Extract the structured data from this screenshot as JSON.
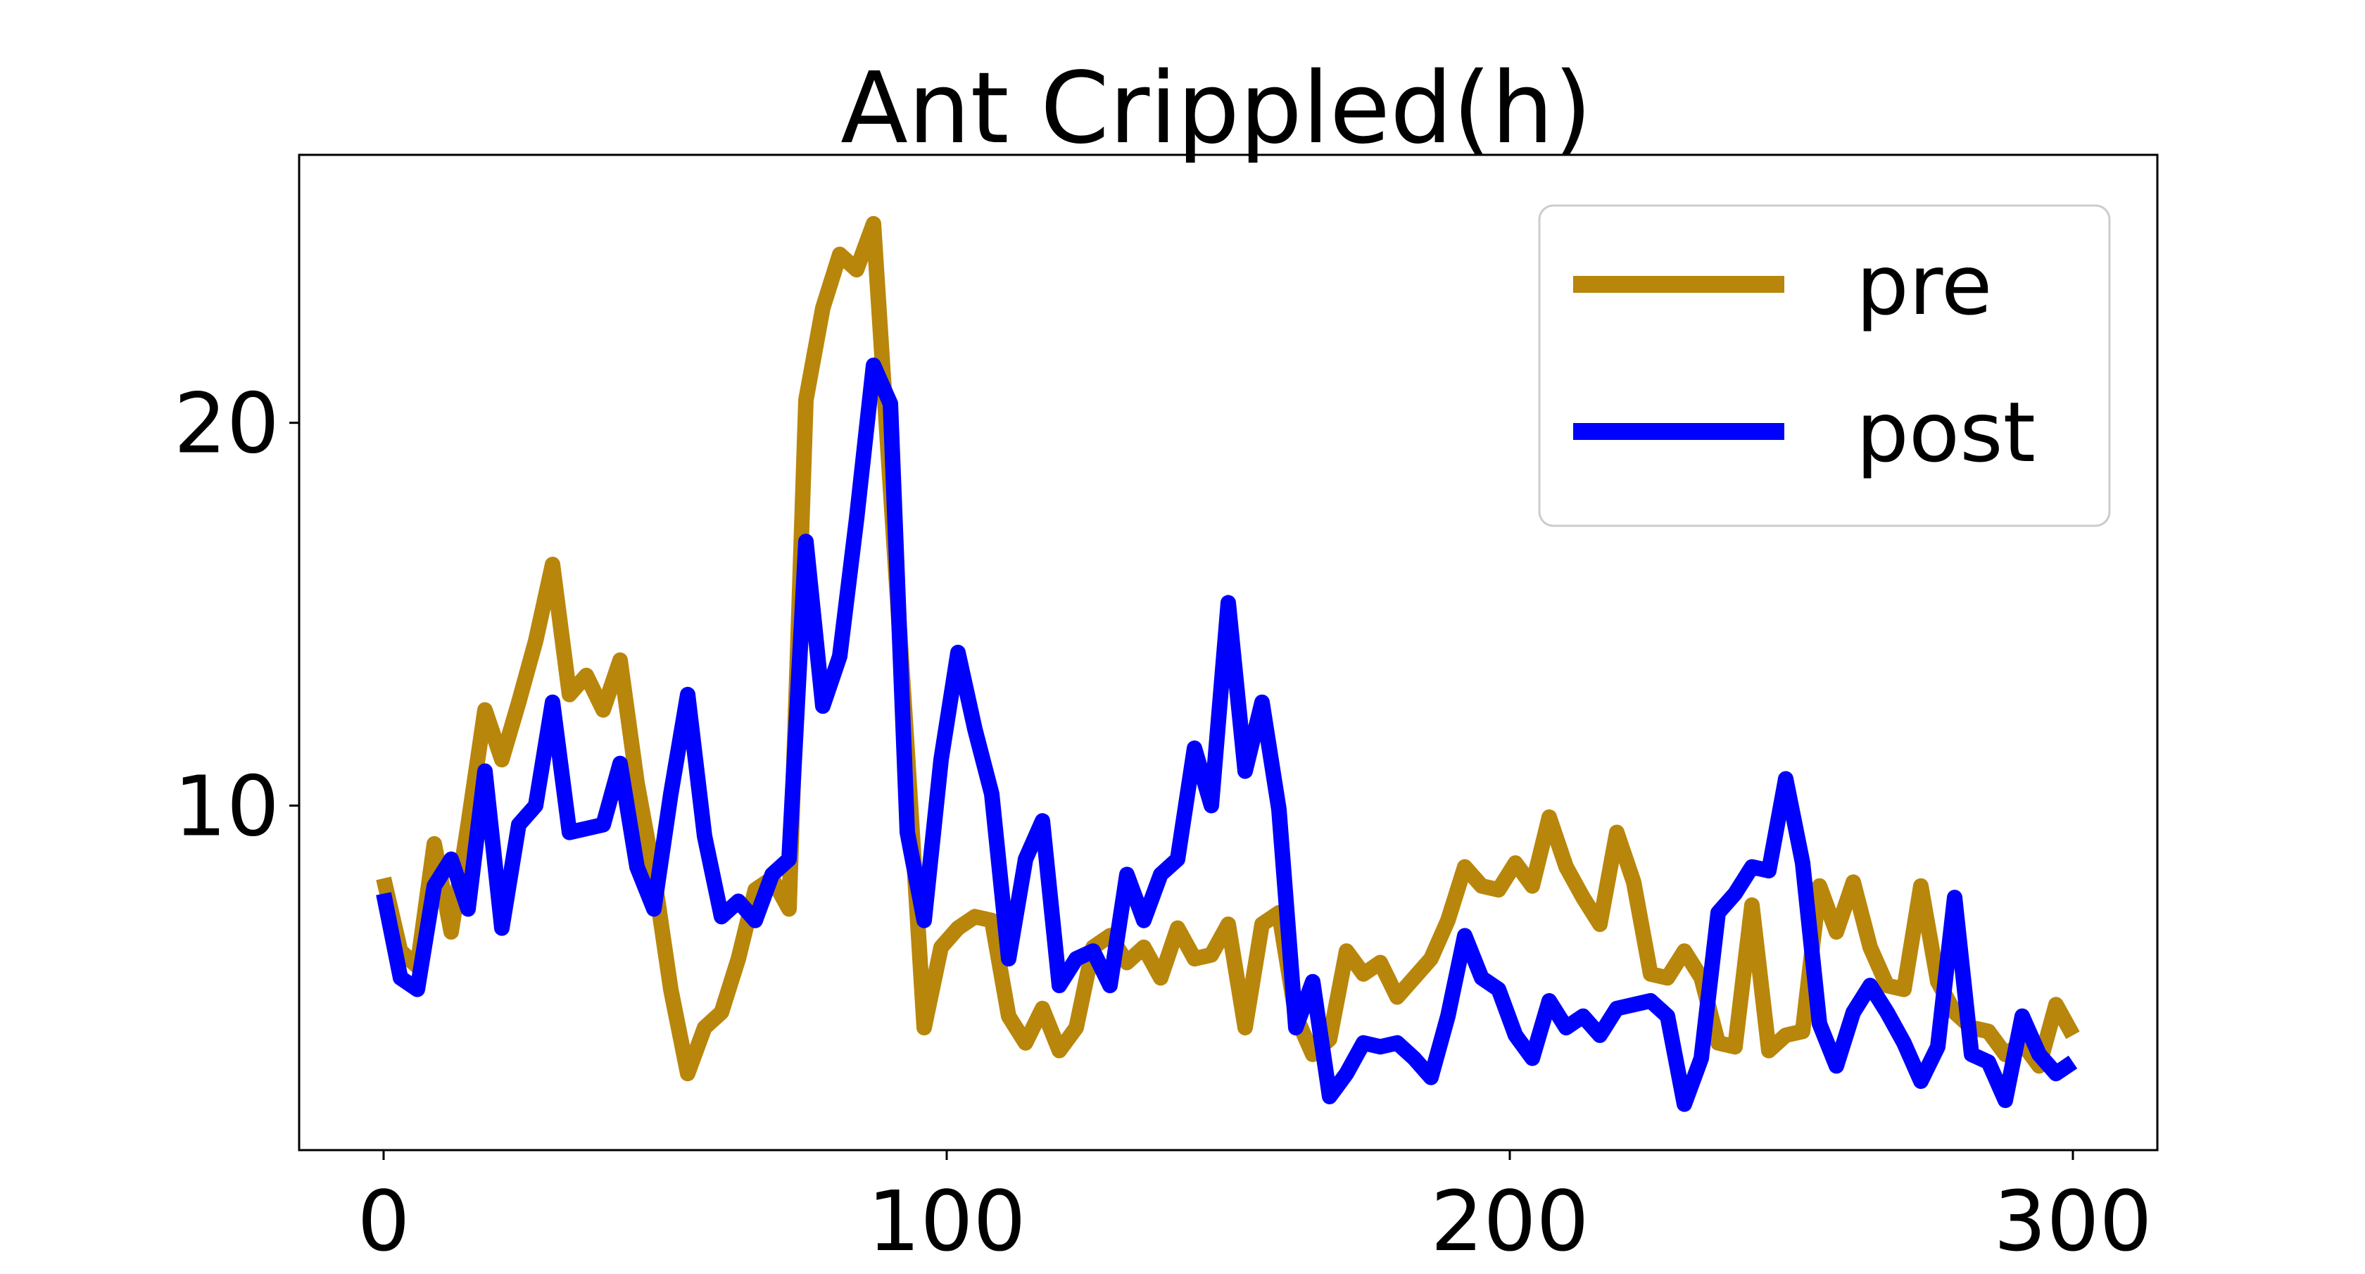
{
  "chart_data": {
    "type": "line",
    "title": "Ant Crippled(h)",
    "xlabel": "",
    "ylabel": "",
    "xlim": [
      -15,
      315
    ],
    "ylim": [
      1,
      27
    ],
    "xticks": [
      0,
      100,
      200,
      300
    ],
    "xtick_labels": [
      "0",
      "100",
      "200",
      "300"
    ],
    "yticks": [
      10,
      20
    ],
    "ytick_labels": [
      "10",
      "20"
    ],
    "grid": false,
    "legend": {
      "position": "top-right"
    },
    "series": [
      {
        "name": "pre",
        "color": "#B8860B",
        "x": [
          0,
          3,
          6,
          9,
          12,
          15,
          18,
          21,
          24,
          27,
          30,
          33,
          36,
          39,
          42,
          45,
          48,
          51,
          54,
          57,
          60,
          63,
          66,
          69,
          72,
          75,
          78,
          81,
          84,
          87,
          90,
          93,
          96,
          99,
          102,
          105,
          108,
          111,
          114,
          117,
          120,
          123,
          126,
          129,
          132,
          135,
          138,
          141,
          144,
          147,
          150,
          153,
          156,
          159,
          162,
          165,
          168,
          171,
          174,
          177,
          180,
          183,
          186,
          189,
          192,
          195,
          198,
          201,
          204,
          207,
          210,
          213,
          216,
          219,
          222,
          225,
          228,
          231,
          234,
          237,
          240,
          243,
          246,
          249,
          252,
          255,
          258,
          261,
          264,
          267,
          270,
          273,
          276,
          279,
          282,
          285,
          288,
          291,
          294,
          297,
          300
        ],
        "values": [
          8.1,
          6.2,
          5.8,
          9.0,
          6.7,
          9.5,
          12.5,
          11.2,
          12.7,
          14.3,
          16.3,
          12.9,
          13.4,
          12.5,
          13.8,
          10.6,
          8.2,
          5.2,
          3.0,
          4.2,
          4.6,
          6.0,
          7.8,
          8.1,
          7.3,
          20.6,
          23.0,
          24.4,
          24.0,
          25.2,
          18.3,
          11.4,
          4.2,
          6.3,
          6.8,
          7.1,
          7.0,
          4.5,
          3.8,
          4.7,
          3.6,
          4.2,
          6.3,
          6.6,
          5.9,
          6.3,
          5.5,
          6.8,
          6.0,
          6.1,
          6.9,
          4.2,
          6.9,
          7.2,
          4.5,
          3.5,
          3.9,
          6.2,
          5.6,
          5.9,
          5.0,
          5.5,
          6.0,
          7.0,
          8.4,
          7.9,
          7.8,
          8.5,
          7.9,
          9.7,
          8.4,
          7.6,
          6.9,
          9.3,
          8.0,
          5.6,
          5.5,
          6.2,
          5.5,
          3.8,
          3.7,
          7.4,
          3.6,
          4.0,
          4.1,
          7.9,
          6.7,
          8.0,
          6.3,
          5.3,
          5.2,
          7.9,
          5.4,
          4.6,
          4.2,
          4.1,
          3.5,
          3.8,
          3.2,
          4.8,
          4.0
        ]
      },
      {
        "name": "post",
        "color": "#0000FF",
        "x": [
          0,
          3,
          6,
          9,
          12,
          15,
          18,
          21,
          24,
          27,
          30,
          33,
          36,
          39,
          42,
          45,
          48,
          51,
          54,
          57,
          60,
          63,
          66,
          69,
          72,
          75,
          78,
          81,
          84,
          87,
          90,
          93,
          96,
          99,
          102,
          105,
          108,
          111,
          114,
          117,
          120,
          123,
          126,
          129,
          132,
          135,
          138,
          141,
          144,
          147,
          150,
          153,
          156,
          159,
          162,
          165,
          168,
          171,
          174,
          177,
          180,
          183,
          186,
          189,
          192,
          195,
          198,
          201,
          204,
          207,
          210,
          213,
          216,
          219,
          222,
          225,
          228,
          231,
          234,
          237,
          240,
          243,
          246,
          249,
          252,
          255,
          258,
          261,
          264,
          267,
          270,
          273,
          276,
          279,
          282,
          285,
          288,
          291,
          294,
          297,
          300
        ],
        "values": [
          7.7,
          5.5,
          5.2,
          7.9,
          8.6,
          7.3,
          10.9,
          6.8,
          9.5,
          10.0,
          12.7,
          9.3,
          9.4,
          9.5,
          11.1,
          8.4,
          7.3,
          10.3,
          12.9,
          9.2,
          7.1,
          7.5,
          7.0,
          8.2,
          8.6,
          16.9,
          12.6,
          13.9,
          17.5,
          21.5,
          20.5,
          9.3,
          7.0,
          11.2,
          14.0,
          12.0,
          10.3,
          6.0,
          8.6,
          9.6,
          5.3,
          6.0,
          6.2,
          5.3,
          8.2,
          7.0,
          8.2,
          8.6,
          11.5,
          10.0,
          15.3,
          10.9,
          12.7,
          9.9,
          4.2,
          5.4,
          2.4,
          3.0,
          3.8,
          3.7,
          3.8,
          3.4,
          2.9,
          4.5,
          6.6,
          5.5,
          5.2,
          4.0,
          3.4,
          4.9,
          4.2,
          4.5,
          4.0,
          4.7,
          4.8,
          4.9,
          4.5,
          2.2,
          3.4,
          7.2,
          7.7,
          8.4,
          8.3,
          10.7,
          8.5,
          4.3,
          3.2,
          4.6,
          5.3,
          4.6,
          3.8,
          2.8,
          3.7,
          7.6,
          3.5,
          3.3,
          2.3,
          4.5,
          3.5,
          3.0,
          3.3
        ]
      }
    ]
  }
}
